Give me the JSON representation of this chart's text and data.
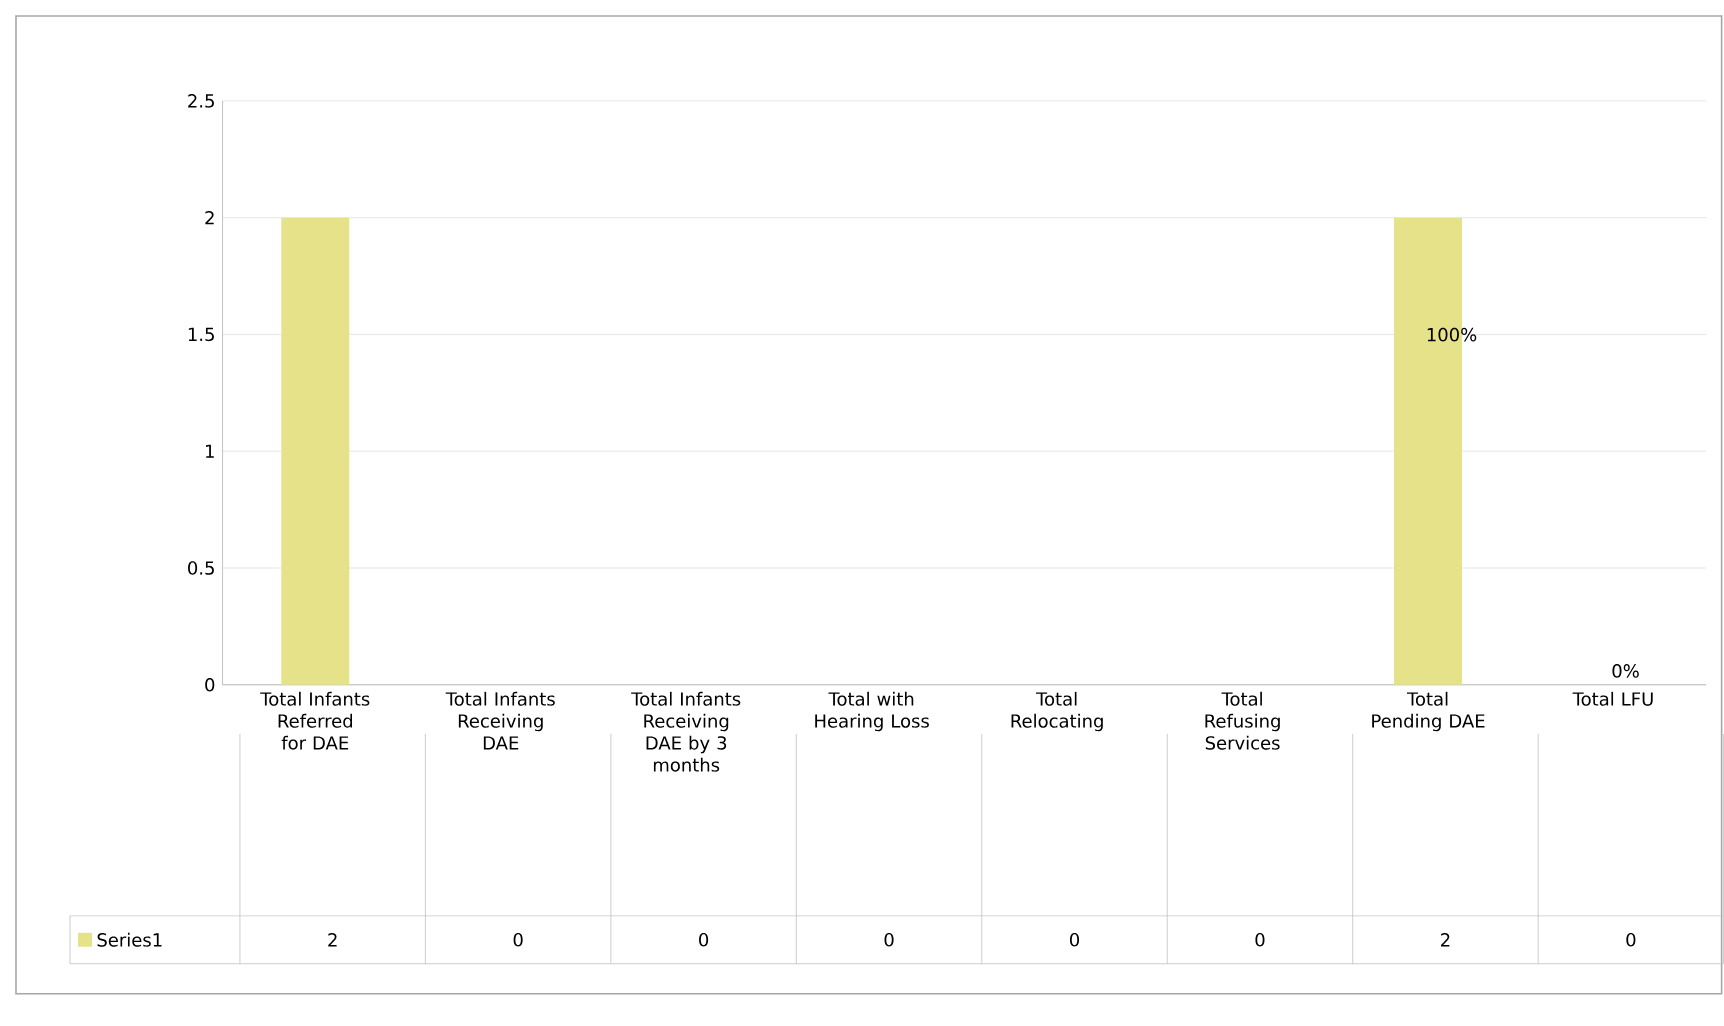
{
  "chart_data": {
    "type": "bar",
    "categories": [
      "Total Infants Referred for DAE",
      "Total Infants Receiving DAE",
      "Total Infants Receiving DAE by 3 months",
      "Total with Hearing Loss",
      "Total Relocating",
      "Total Refusing Services",
      "Total Pending DAE",
      "Total LFU"
    ],
    "series": [
      {
        "name": "Series1",
        "color": "#e6e28a",
        "values": [
          2,
          0,
          0,
          0,
          0,
          0,
          2,
          0
        ]
      }
    ],
    "ylim": [
      0,
      2.5
    ],
    "yticks": [
      0,
      0.5,
      1,
      1.5,
      2,
      2.5
    ],
    "grid": "y",
    "data_labels": true,
    "legend": "bottom",
    "annotations": [
      "100%",
      "0%"
    ]
  }
}
